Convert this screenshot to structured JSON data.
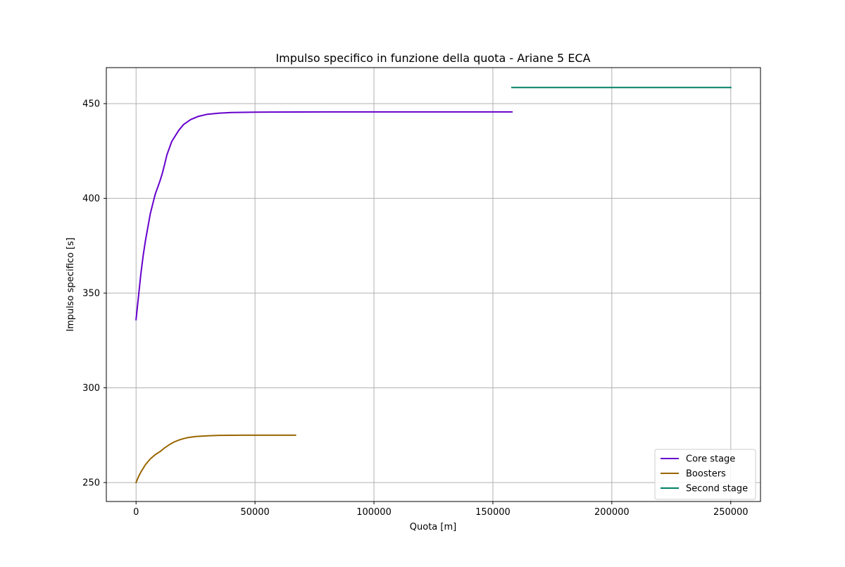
{
  "chart_data": {
    "type": "line",
    "title": "Impulso specifico in funzione della quota - Ariane 5 ECA",
    "xlabel": "Quota [m]",
    "ylabel": "Impulso specifico [s]",
    "xlim": [
      -12500,
      262500
    ],
    "ylim": [
      240,
      469
    ],
    "xticks": [
      0,
      50000,
      100000,
      150000,
      200000,
      250000
    ],
    "yticks": [
      250,
      300,
      350,
      400,
      450
    ],
    "grid": true,
    "legend_position": "lower-right",
    "series": [
      {
        "name": "Core stage",
        "color": "#6600cc",
        "points": [
          [
            0,
            336
          ],
          [
            1000,
            348
          ],
          [
            2000,
            360
          ],
          [
            3000,
            370
          ],
          [
            4000,
            378
          ],
          [
            6000,
            392
          ],
          [
            8000,
            402
          ],
          [
            10000,
            409
          ],
          [
            11000,
            413
          ],
          [
            12000,
            418
          ],
          [
            13000,
            423
          ],
          [
            15000,
            430
          ],
          [
            18000,
            436
          ],
          [
            20000,
            439
          ],
          [
            23000,
            441.6
          ],
          [
            26000,
            443.2
          ],
          [
            30000,
            444.4
          ],
          [
            35000,
            445
          ],
          [
            40000,
            445.3
          ],
          [
            50000,
            445.5
          ],
          [
            80000,
            445.6
          ],
          [
            120000,
            445.6
          ],
          [
            158000,
            445.6
          ]
        ]
      },
      {
        "name": "Boosters",
        "color": "#996600",
        "points": [
          [
            0,
            250
          ],
          [
            1000,
            253
          ],
          [
            2000,
            255.5
          ],
          [
            4000,
            259.5
          ],
          [
            6000,
            262.5
          ],
          [
            8000,
            264.7
          ],
          [
            10000,
            266.3
          ],
          [
            11000,
            267.3
          ],
          [
            12000,
            268.3
          ],
          [
            14000,
            270
          ],
          [
            16000,
            271.4
          ],
          [
            18000,
            272.4
          ],
          [
            20000,
            273.2
          ],
          [
            22000,
            273.8
          ],
          [
            25000,
            274.3
          ],
          [
            30000,
            274.7
          ],
          [
            35000,
            274.9
          ],
          [
            45000,
            275
          ],
          [
            67000,
            275
          ]
        ]
      },
      {
        "name": "Second stage",
        "color": "#008066",
        "points": [
          [
            158000,
            458.5
          ],
          [
            250000,
            458.5
          ]
        ]
      }
    ]
  }
}
